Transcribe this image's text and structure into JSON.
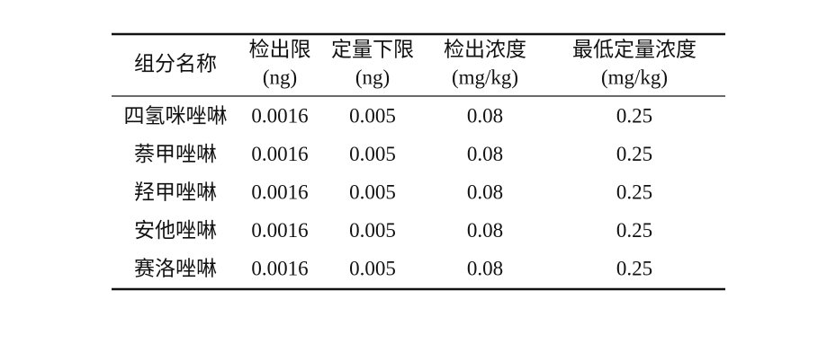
{
  "table": {
    "header": [
      {
        "label": "组分名称"
      },
      {
        "label": "检出限",
        "unit": "(ng)"
      },
      {
        "label": "定量下限",
        "unit": "(ng)"
      },
      {
        "label": "检出浓度",
        "unit": "(mg/kg)"
      },
      {
        "label": "最低定量浓度",
        "unit": "(mg/kg)"
      }
    ],
    "rows": [
      [
        "四氢咪唑啉",
        "0.0016",
        "0.005",
        "0.08",
        "0.25"
      ],
      [
        "萘甲唑啉",
        "0.0016",
        "0.005",
        "0.08",
        "0.25"
      ],
      [
        "羟甲唑啉",
        "0.0016",
        "0.005",
        "0.08",
        "0.25"
      ],
      [
        "安他唑啉",
        "0.0016",
        "0.005",
        "0.08",
        "0.25"
      ],
      [
        "赛洛唑啉",
        "0.0016",
        "0.005",
        "0.08",
        "0.25"
      ]
    ]
  }
}
